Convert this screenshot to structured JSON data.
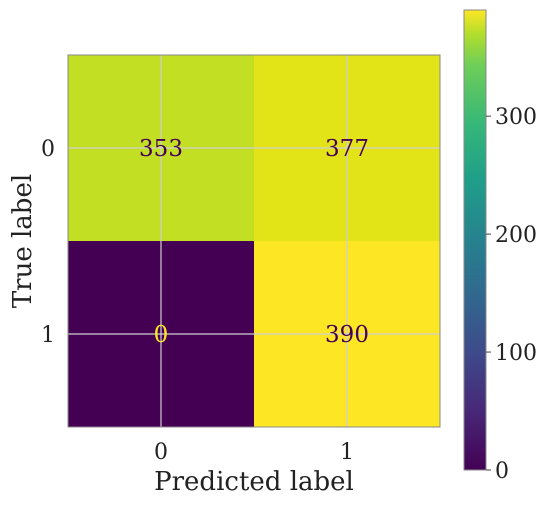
{
  "chart_data": {
    "type": "heatmap",
    "title": "",
    "xlabel": "Predicted label",
    "ylabel": "True label",
    "x_categories": [
      "0",
      "1"
    ],
    "y_categories": [
      "0",
      "1"
    ],
    "matrix": [
      [
        353,
        377
      ],
      [
        0,
        390
      ]
    ],
    "cell_labels": [
      [
        "353",
        "377"
      ],
      [
        "0",
        "390"
      ]
    ],
    "colormap": "viridis",
    "vmin": 0,
    "vmax": 390,
    "colorbar_ticks": [
      0,
      100,
      200,
      300
    ],
    "colorbar_tick_labels": [
      "0",
      "100",
      "200",
      "300"
    ],
    "grid": true,
    "colors": {
      "cell_353": "#c2df23",
      "cell_377": "#e2e418",
      "cell_0": "#440154",
      "cell_390": "#fde725",
      "text_on_dark": "#fde725",
      "text_on_light": "#440154"
    }
  }
}
